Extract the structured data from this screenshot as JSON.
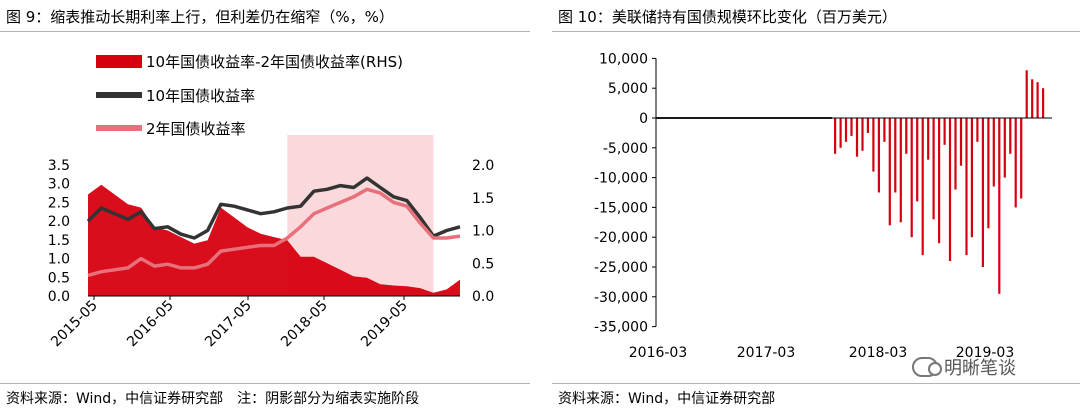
{
  "chart_data": [
    {
      "type": "area",
      "title": "图 9：缩表推动长期利率上行，但利差仍在缩窄（%，%）",
      "source": "资料来源：Wind，中信证券研究部　注：阴影部分为缩表实施阶段",
      "x_ticks": [
        "2015-05",
        "2016-05",
        "2017-05",
        "2018-05",
        "2019-05"
      ],
      "y_left": {
        "ticks": [
          "0.0",
          "0.5",
          "1.0",
          "1.5",
          "2.0",
          "2.5",
          "3.0",
          "3.5"
        ],
        "lim": [
          0,
          3.5
        ]
      },
      "y_right": {
        "ticks": [
          "0.0",
          "0.5",
          "1.0",
          "1.5",
          "2.0"
        ],
        "lim": [
          0,
          2.0
        ]
      },
      "shaded_period": [
        "2017-10",
        "2019-08"
      ],
      "x": [
        "2015-04",
        "2015-06",
        "2015-08",
        "2015-10",
        "2015-12",
        "2016-02",
        "2016-04",
        "2016-06",
        "2016-08",
        "2016-10",
        "2016-12",
        "2017-02",
        "2017-04",
        "2017-06",
        "2017-08",
        "2017-10",
        "2017-12",
        "2018-02",
        "2018-04",
        "2018-06",
        "2018-08",
        "2018-10",
        "2018-12",
        "2019-02",
        "2019-04",
        "2019-06",
        "2019-08",
        "2019-10",
        "2019-12"
      ],
      "series": [
        {
          "name": "10年国债收益率-2年国债收益率(RHS)",
          "type": "area",
          "axis": "right",
          "color": "#d7000f",
          "values": [
            1.55,
            1.7,
            1.55,
            1.4,
            1.35,
            1.05,
            1.0,
            0.9,
            0.8,
            0.85,
            1.35,
            1.2,
            1.05,
            0.95,
            0.9,
            0.85,
            0.6,
            0.6,
            0.5,
            0.4,
            0.3,
            0.28,
            0.18,
            0.16,
            0.15,
            0.12,
            0.05,
            0.1,
            0.25
          ]
        },
        {
          "name": "10年国债收益率",
          "type": "line",
          "axis": "left",
          "color": "#333333",
          "values": [
            2.0,
            2.35,
            2.2,
            2.05,
            2.25,
            1.8,
            1.85,
            1.65,
            1.55,
            1.75,
            2.45,
            2.4,
            2.3,
            2.2,
            2.25,
            2.35,
            2.4,
            2.8,
            2.85,
            2.95,
            2.9,
            3.15,
            2.9,
            2.65,
            2.55,
            2.1,
            1.6,
            1.75,
            1.85
          ]
        },
        {
          "name": "2年国债收益率",
          "type": "line",
          "axis": "left",
          "color": "#e8707a",
          "values": [
            0.55,
            0.65,
            0.7,
            0.75,
            1.0,
            0.8,
            0.85,
            0.75,
            0.75,
            0.85,
            1.2,
            1.25,
            1.3,
            1.35,
            1.35,
            1.55,
            1.85,
            2.2,
            2.35,
            2.5,
            2.65,
            2.85,
            2.75,
            2.5,
            2.4,
            1.95,
            1.55,
            1.55,
            1.6
          ]
        }
      ]
    },
    {
      "type": "bar",
      "title": "图 10：美联储持有国债规模环比变化（百万美元）",
      "source": "资料来源：Wind，中信证券研究部",
      "watermark": "明晰笔谈",
      "x_ticks": [
        "2016-03",
        "2017-03",
        "2018-03",
        "2019-03"
      ],
      "y_ticks": [
        "10,000",
        "5,000",
        "0",
        "-5,000",
        "-10,000",
        "-15,000",
        "-20,000",
        "-25,000",
        "-30,000",
        "-35,000"
      ],
      "ylim": [
        -35000,
        10000
      ],
      "color": "#d7000f",
      "series": [
        {
          "name": "",
          "values": [
            -6000,
            -5000,
            -4000,
            -3000,
            -6500,
            -5500,
            -2500,
            -9000,
            -12500,
            -4000,
            -18000,
            -12500,
            -17500,
            -6000,
            -20000,
            -14000,
            -23000,
            -7000,
            -17000,
            -21000,
            -4500,
            -24000,
            -12000,
            -8000,
            -23000,
            -20000,
            -4000,
            -25000,
            -18500,
            -11500,
            -29500,
            -10000,
            -6000,
            -15000,
            -13500,
            8000,
            6500,
            6000,
            5000
          ]
        }
      ]
    }
  ]
}
